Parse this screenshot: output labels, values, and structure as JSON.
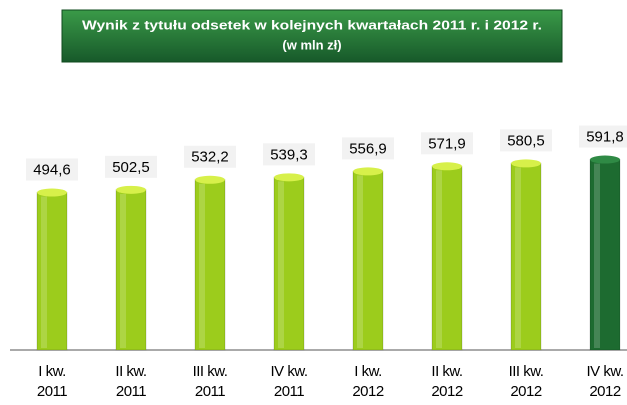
{
  "chart_data": {
    "type": "bar",
    "title": "Wynik z tytułu odsetek w kolejnych kwartałach  2011 r. i 2012 r.",
    "subtitle": "(w mln  zł)",
    "categories": [
      "I kw. 2011",
      "II kw. 2011",
      "III kw. 2011",
      "IV kw. 2011",
      "I kw. 2012",
      "II kw. 2012",
      "III kw. 2012",
      "IV kw. 2012"
    ],
    "values": [
      494.6,
      502.5,
      532.2,
      539.3,
      556.9,
      571.9,
      580.5,
      591.8
    ],
    "value_labels": [
      "494,6",
      "502,5",
      "532,2",
      "539,3",
      "556,9",
      "571,9",
      "580,5",
      "591,8"
    ],
    "colors": [
      "#9ccc1c",
      "#9ccc1c",
      "#9ccc1c",
      "#9ccc1c",
      "#9ccc1c",
      "#9ccc1c",
      "#9ccc1c",
      "#1d6b30"
    ],
    "ylim": [
      30,
      620
    ]
  }
}
